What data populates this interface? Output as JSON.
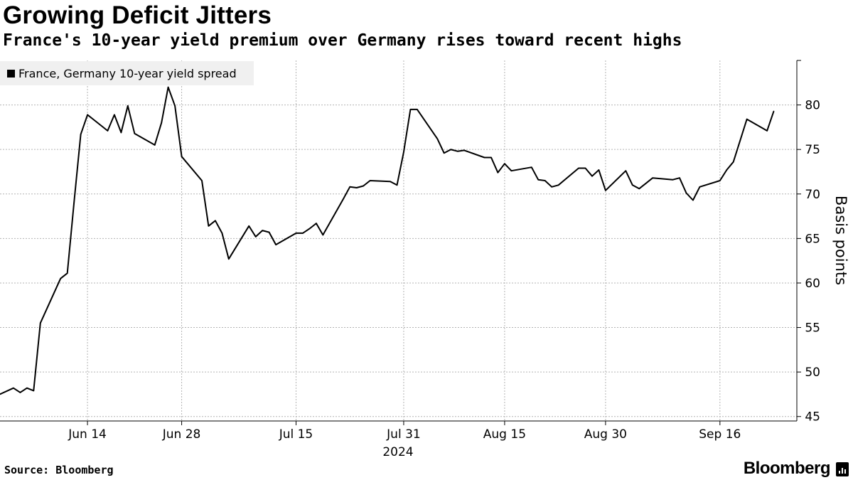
{
  "header": {
    "title": "Growing Deficit Jitters",
    "subtitle": "France's 10-year yield premium over Germany rises toward recent highs"
  },
  "legend": {
    "label": "France, Germany 10-year yield spread"
  },
  "footer": {
    "source": "Source: Bloomberg",
    "brand": "Bloomberg"
  },
  "colors": {
    "line": "#000000",
    "grid": "#b3b3b3",
    "legend_bg": "#f0f0f0"
  },
  "chart_data": {
    "type": "line",
    "title": "Growing Deficit Jitters",
    "subtitle": "France's 10-year yield premium over Germany rises toward recent highs",
    "ylabel": "Basis points",
    "xlabel": "",
    "year_label": "2024",
    "ylim": [
      44.5,
      85
    ],
    "yticks": [
      45,
      50,
      55,
      60,
      65,
      70,
      75,
      80
    ],
    "xlim": [
      "2024-06-01",
      "2024-09-25"
    ],
    "xticks": [
      {
        "date": "2024-06-14",
        "label": "Jun 14"
      },
      {
        "date": "2024-06-28",
        "label": "Jun 28"
      },
      {
        "date": "2024-07-15",
        "label": "Jul 15"
      },
      {
        "date": "2024-07-31",
        "label": "Jul 31"
      },
      {
        "date": "2024-08-15",
        "label": "Aug 15"
      },
      {
        "date": "2024-08-30",
        "label": "Aug 30"
      },
      {
        "date": "2024-09-16",
        "label": "Sep 16"
      }
    ],
    "grid": true,
    "legend_position": "top-left",
    "series": [
      {
        "name": "France, Germany 10-year yield spread",
        "x": [
          "2024-06-01",
          "2024-06-03",
          "2024-06-04",
          "2024-06-05",
          "2024-06-06",
          "2024-06-07",
          "2024-06-10",
          "2024-06-11",
          "2024-06-12",
          "2024-06-13",
          "2024-06-14",
          "2024-06-17",
          "2024-06-18",
          "2024-06-19",
          "2024-06-20",
          "2024-06-21",
          "2024-06-24",
          "2024-06-25",
          "2024-06-26",
          "2024-06-27",
          "2024-06-28",
          "2024-07-01",
          "2024-07-02",
          "2024-07-03",
          "2024-07-04",
          "2024-07-05",
          "2024-07-08",
          "2024-07-09",
          "2024-07-10",
          "2024-07-11",
          "2024-07-12",
          "2024-07-15",
          "2024-07-16",
          "2024-07-17",
          "2024-07-18",
          "2024-07-19",
          "2024-07-22",
          "2024-07-23",
          "2024-07-24",
          "2024-07-25",
          "2024-07-26",
          "2024-07-29",
          "2024-07-30",
          "2024-07-31",
          "2024-08-01",
          "2024-08-02",
          "2024-08-05",
          "2024-08-06",
          "2024-08-07",
          "2024-08-08",
          "2024-08-09",
          "2024-08-12",
          "2024-08-13",
          "2024-08-14",
          "2024-08-15",
          "2024-08-16",
          "2024-08-19",
          "2024-08-20",
          "2024-08-21",
          "2024-08-22",
          "2024-08-23",
          "2024-08-26",
          "2024-08-27",
          "2024-08-28",
          "2024-08-29",
          "2024-08-30",
          "2024-09-02",
          "2024-09-03",
          "2024-09-04",
          "2024-09-05",
          "2024-09-06",
          "2024-09-09",
          "2024-09-10",
          "2024-09-11",
          "2024-09-12",
          "2024-09-13",
          "2024-09-16",
          "2024-09-17",
          "2024-09-18",
          "2024-09-19",
          "2024-09-20",
          "2024-09-23",
          "2024-09-24"
        ],
        "values": [
          47.5,
          48.2,
          47.7,
          48.2,
          47.9,
          55.5,
          60.5,
          61.1,
          69.0,
          76.7,
          78.9,
          77.1,
          78.9,
          76.9,
          79.9,
          76.8,
          75.5,
          78.0,
          82.0,
          79.9,
          74.2,
          71.5,
          66.4,
          67.0,
          65.6,
          62.7,
          66.4,
          65.2,
          65.9,
          65.7,
          64.3,
          65.6,
          65.6,
          66.1,
          66.7,
          65.4,
          69.4,
          70.8,
          70.7,
          70.9,
          71.5,
          71.4,
          71.0,
          74.7,
          79.5,
          79.5,
          76.2,
          74.6,
          75.0,
          74.8,
          74.9,
          74.1,
          74.1,
          72.4,
          73.4,
          72.6,
          73.0,
          71.6,
          71.5,
          70.8,
          71.0,
          72.9,
          72.9,
          72.0,
          72.7,
          70.4,
          72.6,
          71.0,
          70.6,
          71.2,
          71.8,
          71.6,
          71.8,
          70.1,
          69.3,
          70.8,
          71.5,
          72.7,
          73.6,
          76.0,
          78.4,
          77.1,
          79.3
        ]
      }
    ]
  }
}
